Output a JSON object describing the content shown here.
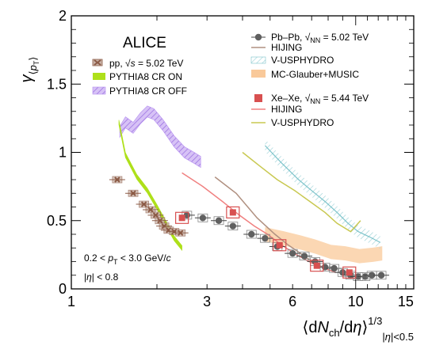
{
  "chart_data": {
    "type": "scatter",
    "xlabel": "⟨dN_ch/dη⟩^(1/3) |η|<0.5",
    "ylabel": "γ⟨pT⟩",
    "xlim": [
      1,
      16
    ],
    "ylim": [
      0,
      2
    ],
    "x_scale": "log",
    "x_ticks": [
      1,
      3,
      6,
      10,
      15
    ],
    "y_ticks": [
      0,
      0.5,
      1,
      1.5,
      2
    ],
    "experiment_label": "ALICE",
    "annotations": [
      "0.2 < p_T < 3.0 GeV/c",
      "|η| < 0.8"
    ],
    "legend_placement": "top-left and top-right",
    "series": [
      {
        "name": "pp, √s = 5.02 TeV",
        "kind": "points",
        "color": "#8b5a45",
        "x": [
          1.45,
          1.65,
          1.8,
          1.9,
          1.98,
          2.05,
          2.12,
          2.2,
          2.3,
          2.42
        ],
        "y": [
          0.8,
          0.7,
          0.62,
          0.58,
          0.54,
          0.5,
          0.46,
          0.43,
          0.42,
          0.41
        ]
      },
      {
        "name": "PYTHIA8 CR ON",
        "kind": "band",
        "color": "#aee01a",
        "x": [
          1.47,
          1.55,
          1.7,
          1.85,
          2.0,
          2.15,
          2.3,
          2.45
        ],
        "y": [
          1.22,
          0.98,
          0.82,
          0.72,
          0.6,
          0.48,
          0.37,
          0.3
        ]
      },
      {
        "name": "PYTHIA8 CR OFF",
        "kind": "band",
        "color": "#b48cf0",
        "x": [
          1.48,
          1.55,
          1.65,
          1.75,
          1.85,
          1.95,
          2.1,
          2.3,
          2.5,
          2.7,
          2.85
        ],
        "y": [
          1.15,
          1.22,
          1.18,
          1.25,
          1.3,
          1.28,
          1.2,
          1.08,
          1.0,
          0.96,
          0.93
        ]
      },
      {
        "name": "Pb–Pb, √sNN = 5.02 TeV",
        "kind": "points",
        "color": "#606060",
        "x": [
          2.55,
          2.9,
          3.3,
          3.7,
          4.3,
          4.8,
          5.3,
          6.0,
          6.6,
          7.2,
          7.8,
          8.4,
          9.0,
          9.6,
          10.2,
          10.8,
          11.4,
          12.3
        ],
        "y": [
          0.54,
          0.52,
          0.5,
          0.46,
          0.4,
          0.37,
          0.31,
          0.26,
          0.24,
          0.2,
          0.16,
          0.15,
          0.12,
          0.1,
          0.09,
          0.09,
          0.1,
          0.1
        ]
      },
      {
        "name": "HIJING",
        "kind": "line",
        "color": "#b09080",
        "x": [
          3.2,
          3.8,
          4.5,
          5.2,
          5.8,
          6.4,
          7.0,
          7.8,
          8.5
        ],
        "y": [
          0.82,
          0.7,
          0.52,
          0.4,
          0.32,
          0.26,
          0.2,
          0.15,
          0.12
        ]
      },
      {
        "name": "V-USPHYDRO",
        "kind": "band",
        "color": "#a8dce0",
        "x": [
          4.8,
          5.5,
          6.3,
          7.0,
          7.8,
          8.6,
          9.4,
          10.2,
          11.2,
          12.2
        ],
        "y": [
          1.05,
          0.92,
          0.8,
          0.72,
          0.64,
          0.56,
          0.48,
          0.42,
          0.38,
          0.34
        ]
      },
      {
        "name": "MC-Glauber+MUSIC",
        "kind": "band",
        "color": "#f9c99a",
        "x": [
          4.8,
          5.6,
          6.4,
          7.2,
          8.2,
          9.2,
          10.3,
          11.5,
          12.4
        ],
        "y": [
          0.4,
          0.37,
          0.34,
          0.31,
          0.27,
          0.26,
          0.24,
          0.25,
          0.26
        ]
      },
      {
        "name": "Xe–Xe, √sNN = 5.44 TeV",
        "kind": "points",
        "color": "#d85050",
        "x": [
          2.45,
          3.7,
          5.4,
          7.3,
          9.5
        ],
        "y": [
          0.52,
          0.56,
          0.32,
          0.17,
          0.12
        ]
      },
      {
        "name": "HIJING",
        "kind": "line",
        "color": "#f08080",
        "x": [
          2.45,
          2.9,
          3.4,
          3.9,
          4.4,
          4.9,
          5.5,
          6.2,
          7.0,
          7.8,
          8.5
        ],
        "y": [
          0.85,
          0.75,
          0.64,
          0.54,
          0.46,
          0.4,
          0.32,
          0.25,
          0.19,
          0.15,
          0.12
        ]
      },
      {
        "name": "V-USPHYDRO",
        "kind": "line",
        "color": "#c8c850",
        "x": [
          4.0,
          4.6,
          5.3,
          6.1,
          6.9,
          7.8,
          8.6,
          9.6,
          10.4
        ],
        "y": [
          1.0,
          0.9,
          0.8,
          0.72,
          0.64,
          0.56,
          0.48,
          0.42,
          0.5
        ]
      }
    ]
  }
}
